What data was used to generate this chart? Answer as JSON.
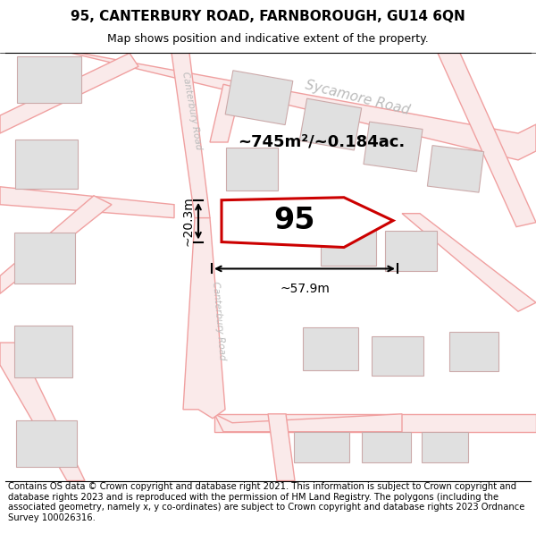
{
  "title": "95, CANTERBURY ROAD, FARNBOROUGH, GU14 6QN",
  "subtitle": "Map shows position and indicative extent of the property.",
  "footer": "Contains OS data © Crown copyright and database right 2021. This information is subject to Crown copyright and database rights 2023 and is reproduced with the permission of HM Land Registry. The polygons (including the associated geometry, namely x, y co-ordinates) are subject to Crown copyright and database rights 2023 Ordnance Survey 100026316.",
  "area_text": "~745m²/~0.184ac.",
  "width_label": "~57.9m",
  "height_label": "~20.3m",
  "property_number": "95",
  "bg_color": "#ffffff",
  "map_bg": "#ffffff",
  "road_stroke": "#f0a0a0",
  "road_fill": "#faeaea",
  "building_fill": "#e0e0e0",
  "building_stroke": "#ccaaaa",
  "highlight_color": "#cc0000",
  "road_label_color": "#bbbbbb",
  "title_fontsize": 11,
  "subtitle_fontsize": 9,
  "footer_fontsize": 7.2,
  "map_facecolor": "#f5f0f0"
}
